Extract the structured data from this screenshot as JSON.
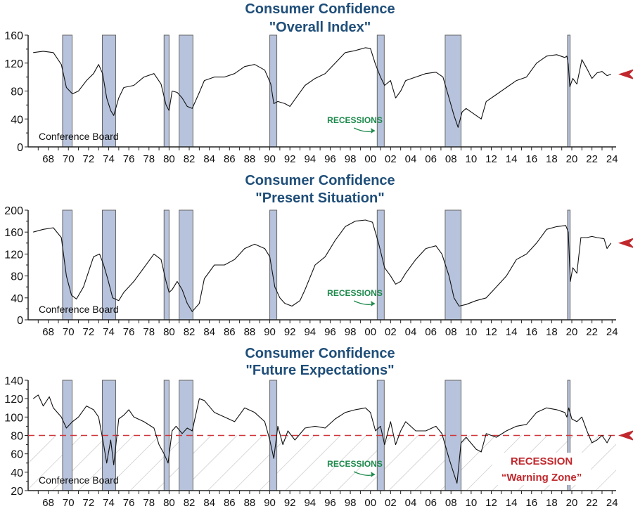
{
  "colors": {
    "title": "#1f4e79",
    "recession_fill": "#b7c3dc",
    "recession_stroke": "#666666",
    "line": "#111111",
    "arrow": "#c0282d",
    "recession_label": "#1e8a4c",
    "warning_line": "#d0343a",
    "warning_text": "#c0282d",
    "hatch": "#c8c8c8"
  },
  "x_tick_labels": [
    "68",
    "70",
    "72",
    "74",
    "76",
    "78",
    "80",
    "82",
    "84",
    "86",
    "88",
    "90",
    "92",
    "94",
    "96",
    "98",
    "00",
    "02",
    "04",
    "06",
    "08",
    "10",
    "12",
    "14",
    "16",
    "18",
    "20",
    "22",
    "24"
  ],
  "recessions": [
    [
      1969.92,
      1970.87
    ],
    [
      1973.87,
      1975.2
    ],
    [
      1980.0,
      1980.5
    ],
    [
      1981.5,
      1982.87
    ],
    [
      1990.5,
      1991.2
    ],
    [
      2001.17,
      2001.87
    ],
    [
      2007.92,
      2009.5
    ],
    [
      2020.08,
      2020.33
    ]
  ],
  "chart_data": [
    {
      "type": "line",
      "title": "Consumer Confidence",
      "subtitle": "\"Overall Index\"",
      "source": "Conference Board",
      "annotation": "RECESSIONS",
      "xlabel": "",
      "ylabel": "",
      "xlim": [
        1966.5,
        2024.9
      ],
      "ylim": [
        0,
        160
      ],
      "y_ticks": [
        "0",
        "40",
        "80",
        "120",
        "160"
      ],
      "y_tick_values": [
        0,
        40,
        80,
        120,
        160
      ],
      "latest_value": 104,
      "points": [
        [
          1967.0,
          135
        ],
        [
          1968.0,
          137
        ],
        [
          1969.0,
          135
        ],
        [
          1969.8,
          118
        ],
        [
          1970.3,
          85
        ],
        [
          1970.9,
          76
        ],
        [
          1971.5,
          80
        ],
        [
          1972.3,
          95
        ],
        [
          1973.0,
          105
        ],
        [
          1973.5,
          118
        ],
        [
          1973.9,
          105
        ],
        [
          1974.3,
          70
        ],
        [
          1974.7,
          52
        ],
        [
          1975.0,
          45
        ],
        [
          1975.5,
          70
        ],
        [
          1976.0,
          85
        ],
        [
          1977.0,
          88
        ],
        [
          1978.0,
          100
        ],
        [
          1979.0,
          105
        ],
        [
          1979.7,
          90
        ],
        [
          1980.2,
          60
        ],
        [
          1980.5,
          52
        ],
        [
          1980.8,
          80
        ],
        [
          1981.3,
          78
        ],
        [
          1981.8,
          70
        ],
        [
          1982.3,
          58
        ],
        [
          1982.8,
          55
        ],
        [
          1983.5,
          78
        ],
        [
          1984.0,
          95
        ],
        [
          1985.0,
          100
        ],
        [
          1986.0,
          100
        ],
        [
          1987.0,
          105
        ],
        [
          1988.0,
          115
        ],
        [
          1989.0,
          118
        ],
        [
          1990.0,
          110
        ],
        [
          1990.6,
          90
        ],
        [
          1990.9,
          62
        ],
        [
          1991.3,
          65
        ],
        [
          1992.0,
          62
        ],
        [
          1992.5,
          58
        ],
        [
          1993.0,
          68
        ],
        [
          1994.0,
          88
        ],
        [
          1995.0,
          98
        ],
        [
          1996.0,
          105
        ],
        [
          1997.0,
          120
        ],
        [
          1998.0,
          135
        ],
        [
          1999.0,
          138
        ],
        [
          2000.0,
          142
        ],
        [
          2000.5,
          141
        ],
        [
          2001.0,
          118
        ],
        [
          2001.5,
          100
        ],
        [
          2001.9,
          88
        ],
        [
          2002.5,
          95
        ],
        [
          2003.0,
          70
        ],
        [
          2003.5,
          80
        ],
        [
          2004.0,
          95
        ],
        [
          2005.0,
          100
        ],
        [
          2006.0,
          105
        ],
        [
          2007.0,
          107
        ],
        [
          2007.7,
          100
        ],
        [
          2008.3,
          70
        ],
        [
          2008.8,
          45
        ],
        [
          2009.2,
          28
        ],
        [
          2009.6,
          50
        ],
        [
          2010.0,
          55
        ],
        [
          2011.0,
          45
        ],
        [
          2011.5,
          40
        ],
        [
          2012.0,
          65
        ],
        [
          2013.0,
          75
        ],
        [
          2014.0,
          85
        ],
        [
          2015.0,
          95
        ],
        [
          2016.0,
          100
        ],
        [
          2017.0,
          120
        ],
        [
          2018.0,
          130
        ],
        [
          2019.0,
          132
        ],
        [
          2019.8,
          128
        ],
        [
          2020.0,
          130
        ],
        [
          2020.15,
          118
        ],
        [
          2020.3,
          86
        ],
        [
          2020.6,
          98
        ],
        [
          2021.0,
          90
        ],
        [
          2021.5,
          125
        ],
        [
          2022.0,
          112
        ],
        [
          2022.5,
          98
        ],
        [
          2023.0,
          106
        ],
        [
          2023.5,
          108
        ],
        [
          2024.0,
          102
        ],
        [
          2024.4,
          104
        ]
      ]
    },
    {
      "type": "line",
      "title": "Consumer Confidence",
      "subtitle": "\"Present Situation\"",
      "source": "Conference Board",
      "annotation": "RECESSIONS",
      "xlabel": "",
      "ylabel": "",
      "xlim": [
        1966.5,
        2024.9
      ],
      "ylim": [
        0,
        200
      ],
      "y_ticks": [
        "0",
        "40",
        "80",
        "120",
        "160",
        "200"
      ],
      "y_tick_values": [
        0,
        40,
        80,
        120,
        160,
        200
      ],
      "latest_value": 140,
      "points": [
        [
          1967.0,
          160
        ],
        [
          1968.0,
          165
        ],
        [
          1969.0,
          168
        ],
        [
          1969.8,
          150
        ],
        [
          1970.3,
          80
        ],
        [
          1970.8,
          45
        ],
        [
          1971.3,
          38
        ],
        [
          1972.0,
          60
        ],
        [
          1973.0,
          115
        ],
        [
          1973.6,
          120
        ],
        [
          1974.0,
          100
        ],
        [
          1974.4,
          75
        ],
        [
          1974.9,
          40
        ],
        [
          1975.5,
          35
        ],
        [
          1976.0,
          50
        ],
        [
          1977.0,
          70
        ],
        [
          1978.0,
          95
        ],
        [
          1979.0,
          120
        ],
        [
          1979.7,
          110
        ],
        [
          1980.2,
          70
        ],
        [
          1980.5,
          50
        ],
        [
          1980.8,
          55
        ],
        [
          1981.3,
          70
        ],
        [
          1981.8,
          55
        ],
        [
          1982.3,
          30
        ],
        [
          1982.8,
          15
        ],
        [
          1983.5,
          30
        ],
        [
          1984.0,
          75
        ],
        [
          1985.0,
          100
        ],
        [
          1986.0,
          100
        ],
        [
          1987.0,
          110
        ],
        [
          1988.0,
          130
        ],
        [
          1989.0,
          138
        ],
        [
          1990.0,
          130
        ],
        [
          1990.5,
          115
        ],
        [
          1991.0,
          60
        ],
        [
          1991.5,
          40
        ],
        [
          1992.0,
          30
        ],
        [
          1992.7,
          25
        ],
        [
          1993.5,
          35
        ],
        [
          1994.0,
          55
        ],
        [
          1995.0,
          100
        ],
        [
          1996.0,
          115
        ],
        [
          1997.0,
          145
        ],
        [
          1998.0,
          170
        ],
        [
          1999.0,
          180
        ],
        [
          2000.0,
          182
        ],
        [
          2000.7,
          178
        ],
        [
          2001.3,
          140
        ],
        [
          2001.9,
          95
        ],
        [
          2002.5,
          80
        ],
        [
          2003.0,
          65
        ],
        [
          2003.5,
          70
        ],
        [
          2004.0,
          85
        ],
        [
          2005.0,
          110
        ],
        [
          2006.0,
          130
        ],
        [
          2007.0,
          135
        ],
        [
          2007.6,
          120
        ],
        [
          2008.3,
          80
        ],
        [
          2008.8,
          40
        ],
        [
          2009.3,
          25
        ],
        [
          2010.0,
          28
        ],
        [
          2011.0,
          35
        ],
        [
          2012.0,
          40
        ],
        [
          2013.0,
          60
        ],
        [
          2014.0,
          80
        ],
        [
          2015.0,
          110
        ],
        [
          2016.0,
          120
        ],
        [
          2017.0,
          140
        ],
        [
          2018.0,
          165
        ],
        [
          2019.0,
          170
        ],
        [
          2019.9,
          172
        ],
        [
          2020.15,
          160
        ],
        [
          2020.35,
          70
        ],
        [
          2020.6,
          95
        ],
        [
          2021.0,
          85
        ],
        [
          2021.4,
          150
        ],
        [
          2022.0,
          150
        ],
        [
          2022.5,
          152
        ],
        [
          2023.0,
          150
        ],
        [
          2023.7,
          148
        ],
        [
          2024.0,
          130
        ],
        [
          2024.4,
          140
        ]
      ]
    },
    {
      "type": "line",
      "title": "Consumer Confidence",
      "subtitle": "\"Future Expectations\"",
      "source": "Conference Board",
      "annotation": "RECESSIONS",
      "warning_label_1": "RECESSION",
      "warning_label_2": "“Warning Zone”",
      "warning_threshold": 80,
      "xlabel": "",
      "ylabel": "",
      "xlim": [
        1966.5,
        2024.9
      ],
      "ylim": [
        20,
        140
      ],
      "y_ticks": [
        "20",
        "40",
        "60",
        "80",
        "100",
        "120",
        "140"
      ],
      "y_tick_values": [
        20,
        40,
        60,
        80,
        100,
        120,
        140
      ],
      "latest_value": 80,
      "points": [
        [
          1967.0,
          120
        ],
        [
          1967.5,
          124
        ],
        [
          1968.0,
          112
        ],
        [
          1968.6,
          122
        ],
        [
          1969.0,
          110
        ],
        [
          1969.8,
          100
        ],
        [
          1970.3,
          88
        ],
        [
          1970.9,
          95
        ],
        [
          1971.5,
          100
        ],
        [
          1972.3,
          112
        ],
        [
          1973.0,
          108
        ],
        [
          1973.5,
          100
        ],
        [
          1974.0,
          70
        ],
        [
          1974.3,
          50
        ],
        [
          1974.7,
          75
        ],
        [
          1975.0,
          48
        ],
        [
          1975.5,
          98
        ],
        [
          1976.0,
          102
        ],
        [
          1976.5,
          108
        ],
        [
          1977.0,
          100
        ],
        [
          1978.0,
          95
        ],
        [
          1979.0,
          88
        ],
        [
          1979.5,
          70
        ],
        [
          1980.0,
          60
        ],
        [
          1980.4,
          50
        ],
        [
          1980.8,
          85
        ],
        [
          1981.2,
          90
        ],
        [
          1981.8,
          82
        ],
        [
          1982.3,
          88
        ],
        [
          1982.8,
          85
        ],
        [
          1983.5,
          120
        ],
        [
          1984.0,
          118
        ],
        [
          1985.0,
          105
        ],
        [
          1986.0,
          100
        ],
        [
          1987.0,
          95
        ],
        [
          1988.0,
          110
        ],
        [
          1989.0,
          105
        ],
        [
          1990.0,
          95
        ],
        [
          1990.5,
          75
        ],
        [
          1990.9,
          55
        ],
        [
          1991.3,
          90
        ],
        [
          1991.8,
          70
        ],
        [
          1992.3,
          85
        ],
        [
          1993.0,
          75
        ],
        [
          1994.0,
          88
        ],
        [
          1995.0,
          90
        ],
        [
          1996.0,
          88
        ],
        [
          1997.0,
          98
        ],
        [
          1998.0,
          105
        ],
        [
          1999.0,
          108
        ],
        [
          2000.0,
          110
        ],
        [
          2000.5,
          105
        ],
        [
          2001.0,
          85
        ],
        [
          2001.5,
          90
        ],
        [
          2001.9,
          70
        ],
        [
          2002.5,
          95
        ],
        [
          2003.0,
          70
        ],
        [
          2003.5,
          85
        ],
        [
          2004.0,
          95
        ],
        [
          2005.0,
          85
        ],
        [
          2006.0,
          85
        ],
        [
          2007.0,
          90
        ],
        [
          2007.6,
          82
        ],
        [
          2008.3,
          55
        ],
        [
          2008.8,
          38
        ],
        [
          2009.1,
          28
        ],
        [
          2009.5,
          72
        ],
        [
          2010.0,
          78
        ],
        [
          2011.0,
          65
        ],
        [
          2011.5,
          62
        ],
        [
          2012.0,
          82
        ],
        [
          2013.0,
          78
        ],
        [
          2014.0,
          85
        ],
        [
          2015.0,
          90
        ],
        [
          2016.0,
          92
        ],
        [
          2017.0,
          105
        ],
        [
          2018.0,
          110
        ],
        [
          2019.0,
          108
        ],
        [
          2019.8,
          105
        ],
        [
          2020.0,
          100
        ],
        [
          2020.2,
          110
        ],
        [
          2020.5,
          98
        ],
        [
          2021.0,
          95
        ],
        [
          2021.5,
          100
        ],
        [
          2022.0,
          85
        ],
        [
          2022.5,
          72
        ],
        [
          2023.0,
          75
        ],
        [
          2023.5,
          80
        ],
        [
          2024.0,
          72
        ],
        [
          2024.4,
          80
        ]
      ]
    }
  ]
}
